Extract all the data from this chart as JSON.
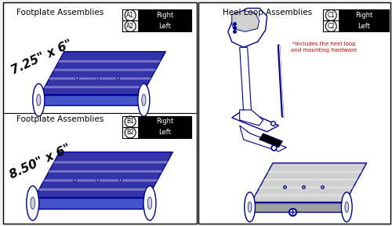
{
  "bg_color": "#f0f0f0",
  "white": "#ffffff",
  "black": "#000000",
  "blue_dark": "#00008B",
  "blue_fill": "#3333aa",
  "blue_stripe": "#4455cc",
  "gray_light": "#d0d0d0",
  "gray_med": "#a0a0a0",
  "red_note": "#cc0000",
  "left_panel_title1": "Footplate Assemblies",
  "left_panel_size1": "7.25\" x 6\"",
  "left_panel_title2": "Footplate Assemblies",
  "left_panel_size2": "8.50\" x 6\"",
  "right_panel_title": "Heel Loop Assemblies",
  "note_text": "*Includes the heel loop\nand mounting hardware",
  "labels_left1": [
    [
      "A1",
      "Right"
    ],
    [
      "A2",
      "Left"
    ]
  ],
  "labels_left2": [
    [
      "B1",
      "Right"
    ],
    [
      "B2",
      "Left"
    ]
  ],
  "labels_right": [
    [
      "C1",
      "Right"
    ],
    [
      "C2",
      "Left"
    ]
  ],
  "figsize": [
    5.0,
    2.88
  ],
  "dpi": 100
}
